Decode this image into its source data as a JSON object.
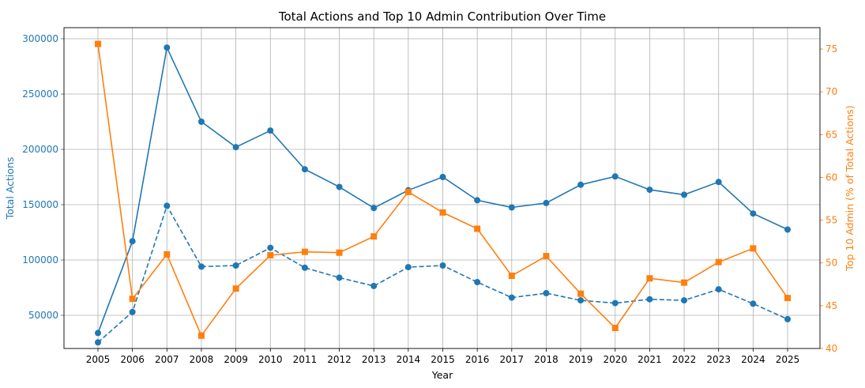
{
  "chart_data": {
    "type": "line",
    "title": "Total Actions and Top 10 Admin Contribution Over Time",
    "xlabel": "Year",
    "ylabel_left": "Total Actions",
    "ylabel_right": "Top 10 Admin (% of Total Actions)",
    "grid": true,
    "colors": {
      "left": "#1f77b4",
      "right": "#ff7f0e"
    },
    "categories": [
      "2005",
      "2006",
      "2007",
      "2008",
      "2009",
      "2010",
      "2011",
      "2012",
      "2013",
      "2014",
      "2015",
      "2016",
      "2017",
      "2018",
      "2019",
      "2020",
      "2021",
      "2022",
      "2023",
      "2024",
      "2025"
    ],
    "ylim_left": [
      20000,
      310000
    ],
    "ylim_right": [
      40,
      77.5
    ],
    "yticks_left": [
      50000,
      100000,
      150000,
      200000,
      250000,
      300000
    ],
    "yticks_right": [
      40,
      45,
      50,
      55,
      60,
      65,
      70,
      75
    ],
    "series": [
      {
        "axis": "left",
        "style": "solid",
        "marker": "circle",
        "color": "#1f77b4",
        "values": [
          34000,
          117000,
          292000,
          225000,
          202000,
          217000,
          182000,
          166000,
          147000,
          163000,
          175000,
          154000,
          147500,
          151500,
          168000,
          175500,
          163500,
          159000,
          170500,
          142000,
          127500
        ]
      },
      {
        "axis": "left",
        "style": "dashed",
        "marker": "circle",
        "color": "#1f77b4",
        "values": [
          25500,
          53000,
          149000,
          94000,
          95000,
          111000,
          93000,
          84000,
          76500,
          93500,
          95000,
          80000,
          66000,
          70000,
          63500,
          61000,
          64500,
          63500,
          73500,
          60500,
          46500
        ]
      },
      {
        "axis": "right",
        "style": "solid",
        "marker": "square",
        "color": "#ff7f0e",
        "values": [
          75.6,
          45.8,
          51.0,
          41.5,
          47.0,
          50.9,
          51.3,
          51.2,
          53.1,
          58.3,
          55.9,
          54.0,
          48.5,
          50.8,
          46.4,
          42.4,
          48.2,
          47.7,
          50.1,
          51.7,
          45.9
        ]
      }
    ]
  }
}
